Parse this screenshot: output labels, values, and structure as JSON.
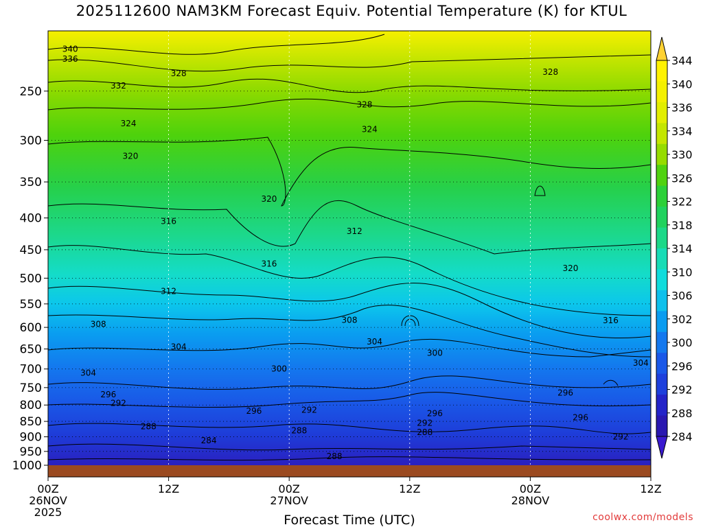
{
  "chart_data": {
    "type": "heatmap",
    "title": "2025112600 NAM3KM Forecast Equiv. Potential Temperature (K) for KTUL",
    "xlabel": "Forecast Time (UTC)",
    "ylabel": "",
    "y_scale": "log-pressure",
    "ylim": [
      1000,
      200
    ],
    "y_ticks": [
      "250",
      "300",
      "350",
      "400",
      "450",
      "500",
      "550",
      "600",
      "650",
      "700",
      "750",
      "800",
      "850",
      "900",
      "950",
      "1000"
    ],
    "x_ticks": [
      {
        "line1": "00Z",
        "line2": "26NOV",
        "line3": "2025"
      },
      {
        "line1": "12Z",
        "line2": "",
        "line3": ""
      },
      {
        "line1": "00Z",
        "line2": "27NOV",
        "line3": ""
      },
      {
        "line1": "12Z",
        "line2": "",
        "line3": ""
      },
      {
        "line1": "00Z",
        "line2": "28NOV",
        "line3": ""
      },
      {
        "line1": "12Z",
        "line2": "",
        "line3": ""
      }
    ],
    "x_hours": [
      0,
      12,
      24,
      36,
      48,
      60
    ],
    "colorbar": {
      "unit": "K",
      "levels": [
        "344",
        "340",
        "336",
        "334",
        "330",
        "326",
        "322",
        "318",
        "314",
        "310",
        "306",
        "302",
        "300",
        "296",
        "292",
        "288",
        "284"
      ],
      "colors": [
        "#fff200",
        "#f4f000",
        "#e2ee00",
        "#c4e600",
        "#96dc00",
        "#50d210",
        "#2cd038",
        "#20d25e",
        "#1cd888",
        "#18dcb6",
        "#10dcdc",
        "#0ec0ec",
        "#0a9cf0",
        "#1478ee",
        "#1a58e8",
        "#1e40dc",
        "#2424c8",
        "#2a18b0"
      ]
    },
    "contour_labels": [
      {
        "text": "340",
        "hour": 2.2,
        "p": 214
      },
      {
        "text": "336",
        "hour": 2.2,
        "p": 222
      },
      {
        "text": "332",
        "hour": 7.0,
        "p": 245
      },
      {
        "text": "328",
        "hour": 13.0,
        "p": 234
      },
      {
        "text": "324",
        "hour": 8.0,
        "p": 282
      },
      {
        "text": "320",
        "hour": 8.2,
        "p": 318
      },
      {
        "text": "316",
        "hour": 12.0,
        "p": 405
      },
      {
        "text": "312",
        "hour": 12.0,
        "p": 525
      },
      {
        "text": "308",
        "hour": 5.0,
        "p": 593
      },
      {
        "text": "304",
        "hour": 13.0,
        "p": 645
      },
      {
        "text": "304",
        "hour": 4.0,
        "p": 710
      },
      {
        "text": "296",
        "hour": 6.0,
        "p": 770
      },
      {
        "text": "292",
        "hour": 7.0,
        "p": 794
      },
      {
        "text": "288",
        "hour": 10.0,
        "p": 866
      },
      {
        "text": "284",
        "hour": 16.0,
        "p": 913
      },
      {
        "text": "320",
        "hour": 22.0,
        "p": 373
      },
      {
        "text": "316",
        "hour": 22.0,
        "p": 474
      },
      {
        "text": "308",
        "hour": 30.0,
        "p": 584
      },
      {
        "text": "300",
        "hour": 23.0,
        "p": 700
      },
      {
        "text": "296",
        "hour": 20.5,
        "p": 818
      },
      {
        "text": "292",
        "hour": 26.0,
        "p": 815
      },
      {
        "text": "288",
        "hour": 25.0,
        "p": 880
      },
      {
        "text": "288",
        "hour": 28.5,
        "p": 968
      },
      {
        "text": "328",
        "hour": 31.5,
        "p": 263
      },
      {
        "text": "324",
        "hour": 32.0,
        "p": 288
      },
      {
        "text": "312",
        "hour": 30.5,
        "p": 420
      },
      {
        "text": "304",
        "hour": 32.5,
        "p": 633
      },
      {
        "text": "300",
        "hour": 38.5,
        "p": 660
      },
      {
        "text": "296",
        "hour": 38.5,
        "p": 825
      },
      {
        "text": "292",
        "hour": 37.5,
        "p": 855
      },
      {
        "text": "288",
        "hour": 37.5,
        "p": 885
      },
      {
        "text": "328",
        "hour": 50.0,
        "p": 233
      },
      {
        "text": "320",
        "hour": 52.0,
        "p": 482
      },
      {
        "text": "316",
        "hour": 56.0,
        "p": 585
      },
      {
        "text": "304",
        "hour": 59.0,
        "p": 685
      },
      {
        "text": "296",
        "hour": 51.5,
        "p": 765
      },
      {
        "text": "296",
        "hour": 53.0,
        "p": 838
      },
      {
        "text": "292",
        "hour": 57.0,
        "p": 900
      }
    ]
  },
  "credit": "coolwx.com/models"
}
